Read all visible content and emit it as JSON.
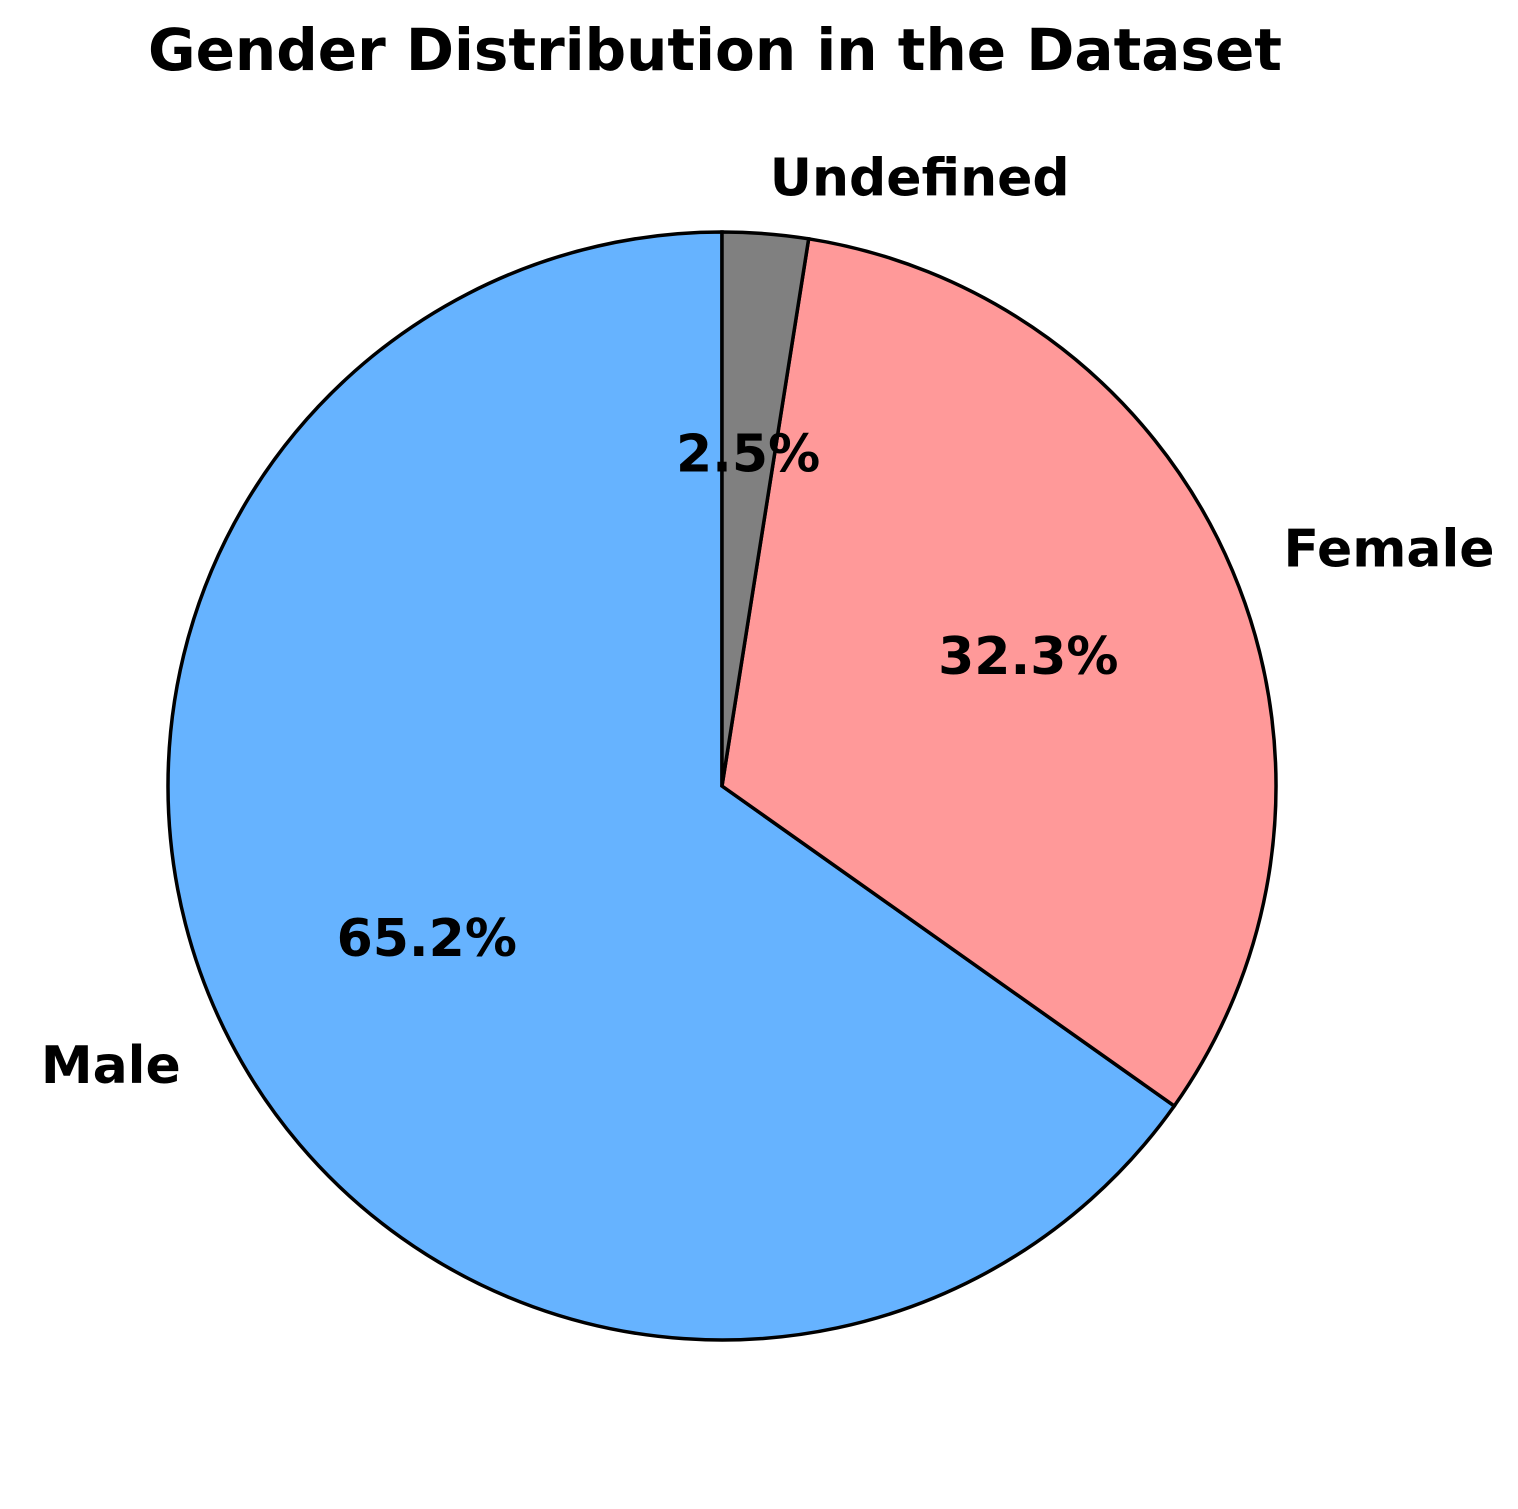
{
  "chart_data": {
    "type": "pie",
    "title": "Gender Distribution in the Dataset",
    "labels": [
      "Male",
      "Female",
      "Undefined"
    ],
    "values": [
      65.2,
      32.3,
      2.5
    ],
    "pct_labels": [
      "65.2%",
      "32.3%",
      "2.5%"
    ],
    "colors": [
      "#66B3FF",
      "#FF9999",
      "#808080"
    ],
    "edge_color": "#000000",
    "text_color": "#000000",
    "background_color": "#FFFFFF",
    "startangle": 90,
    "counterclock": true,
    "pctdistance": 0.6,
    "labeldistance": 1.1,
    "legend": "none",
    "axes": "none"
  }
}
